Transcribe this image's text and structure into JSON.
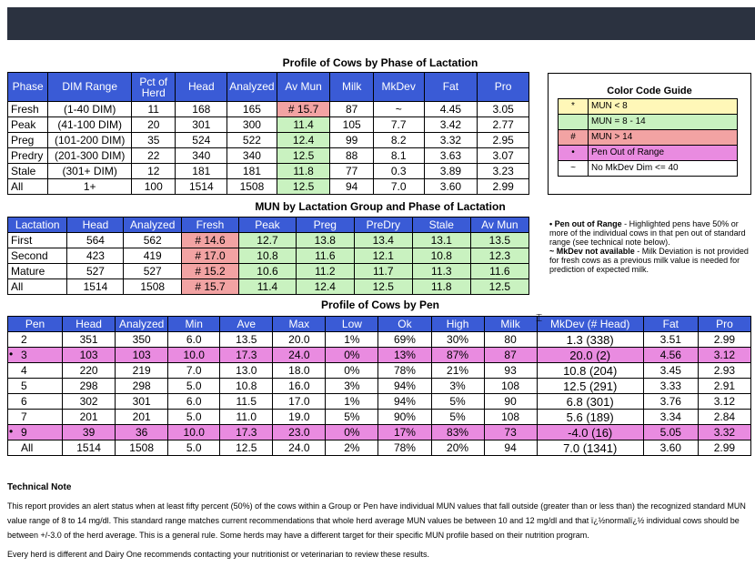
{
  "colors": {
    "header": "#3a5bd6",
    "green": "#c9f2c0",
    "red": "#f2a3a3",
    "pink": "#e98be0",
    "topbar": "#2b3240"
  },
  "phase": {
    "title": "Profile of Cows by Phase of Lactation",
    "headers": [
      "Phase",
      "DIM Range",
      "Pct of Herd",
      "Head",
      "Analyzed",
      "Av Mun",
      "Milk",
      "MkDev",
      "Fat",
      "Pro"
    ],
    "rows": [
      {
        "phase": "Fresh",
        "range": "(1-40 DIM)",
        "pct": "11",
        "head": "168",
        "analyzed": "165",
        "mun": "# 15.7",
        "milk": "87",
        "mkdev": "~",
        "fat": "4.45",
        "pro": "3.05",
        "munColor": "red"
      },
      {
        "phase": "Peak",
        "range": "(41-100 DIM)",
        "pct": "20",
        "head": "301",
        "analyzed": "300",
        "mun": "11.4",
        "milk": "105",
        "mkdev": "7.7",
        "fat": "3.42",
        "pro": "2.77",
        "munColor": "green"
      },
      {
        "phase": "Preg",
        "range": "(101-200 DIM)",
        "pct": "35",
        "head": "524",
        "analyzed": "522",
        "mun": "12.4",
        "milk": "99",
        "mkdev": "8.2",
        "fat": "3.32",
        "pro": "2.95",
        "munColor": "green"
      },
      {
        "phase": "Predry",
        "range": "(201-300 DIM)",
        "pct": "22",
        "head": "340",
        "analyzed": "340",
        "mun": "12.5",
        "milk": "88",
        "mkdev": "8.1",
        "fat": "3.63",
        "pro": "3.07",
        "munColor": "green"
      },
      {
        "phase": "Stale",
        "range": "(301+ DIM)",
        "pct": "12",
        "head": "181",
        "analyzed": "181",
        "mun": "11.8",
        "milk": "77",
        "mkdev": "0.3",
        "fat": "3.89",
        "pro": "3.23",
        "munColor": "green"
      },
      {
        "phase": "All",
        "range": "1+",
        "pct": "100",
        "head": "1514",
        "analyzed": "1508",
        "mun": "12.5",
        "milk": "94",
        "mkdev": "7.0",
        "fat": "3.60",
        "pro": "2.99",
        "munColor": "green"
      }
    ]
  },
  "group": {
    "title": "MUN by Lactation Group and Phase of Lactation",
    "headers": [
      "Lactation",
      "Head",
      "Analyzed",
      "Fresh",
      "Peak",
      "Preg",
      "PreDry",
      "Stale",
      "Av Mun"
    ],
    "rows": [
      {
        "lact": "First",
        "head": "564",
        "analyzed": "562",
        "fresh": "# 14.6",
        "peak": "12.7",
        "preg": "13.8",
        "predry": "13.4",
        "stale": "13.1",
        "avmun": "13.5"
      },
      {
        "lact": "Second",
        "head": "423",
        "analyzed": "419",
        "fresh": "# 17.0",
        "peak": "10.8",
        "preg": "11.6",
        "predry": "12.1",
        "stale": "10.8",
        "avmun": "12.3"
      },
      {
        "lact": "Mature",
        "head": "527",
        "analyzed": "527",
        "fresh": "# 15.2",
        "peak": "10.6",
        "preg": "11.2",
        "predry": "11.7",
        "stale": "11.3",
        "avmun": "11.6"
      },
      {
        "lact": "All",
        "head": "1514",
        "analyzed": "1508",
        "fresh": "# 15.7",
        "peak": "11.4",
        "preg": "12.4",
        "predry": "12.5",
        "stale": "11.8",
        "avmun": "12.5"
      }
    ]
  },
  "pen": {
    "title": "Profile of Cows by Pen",
    "headers": [
      "Pen",
      "Head",
      "Analyzed",
      "Min",
      "Ave",
      "Max",
      "Low",
      "Ok",
      "High",
      "Milk",
      "MkDev (# Head)",
      "Fat",
      "Pro"
    ],
    "rows": [
      {
        "pen": "2",
        "head": "351",
        "analyzed": "350",
        "min": "6.0",
        "ave": "13.5",
        "max": "20.0",
        "low": "1%",
        "ok": "69%",
        "high": "30%",
        "milk": "80",
        "mkdev": "1.3 (338)",
        "fat": "3.51",
        "pro": "2.99",
        "flag": false
      },
      {
        "pen": "3",
        "head": "103",
        "analyzed": "103",
        "min": "10.0",
        "ave": "17.3",
        "max": "24.0",
        "low": "0%",
        "ok": "13%",
        "high": "87%",
        "milk": "87",
        "mkdev": "20.0 (2)",
        "fat": "4.56",
        "pro": "3.12",
        "flag": true
      },
      {
        "pen": "4",
        "head": "220",
        "analyzed": "219",
        "min": "7.0",
        "ave": "13.0",
        "max": "18.0",
        "low": "0%",
        "ok": "78%",
        "high": "21%",
        "milk": "93",
        "mkdev": "10.8 (204)",
        "fat": "3.45",
        "pro": "2.93",
        "flag": false
      },
      {
        "pen": "5",
        "head": "298",
        "analyzed": "298",
        "min": "5.0",
        "ave": "10.8",
        "max": "16.0",
        "low": "3%",
        "ok": "94%",
        "high": "3%",
        "milk": "108",
        "mkdev": "12.5 (291)",
        "fat": "3.33",
        "pro": "2.91",
        "flag": false
      },
      {
        "pen": "6",
        "head": "302",
        "analyzed": "301",
        "min": "6.0",
        "ave": "11.5",
        "max": "17.0",
        "low": "1%",
        "ok": "94%",
        "high": "5%",
        "milk": "90",
        "mkdev": "6.8 (301)",
        "fat": "3.76",
        "pro": "3.12",
        "flag": false
      },
      {
        "pen": "7",
        "head": "201",
        "analyzed": "201",
        "min": "5.0",
        "ave": "11.0",
        "max": "19.0",
        "low": "5%",
        "ok": "90%",
        "high": "5%",
        "milk": "108",
        "mkdev": "5.6 (189)",
        "fat": "3.34",
        "pro": "2.84",
        "flag": false
      },
      {
        "pen": "9",
        "head": "39",
        "analyzed": "36",
        "min": "10.0",
        "ave": "17.3",
        "max": "23.0",
        "low": "0%",
        "ok": "17%",
        "high": "83%",
        "milk": "73",
        "mkdev": "-4.0 (16)",
        "fat": "5.05",
        "pro": "3.32",
        "flag": true
      },
      {
        "pen": "All",
        "head": "1514",
        "analyzed": "1508",
        "min": "5.0",
        "ave": "12.5",
        "max": "24.0",
        "low": "2%",
        "ok": "78%",
        "high": "20%",
        "milk": "94",
        "mkdev": "7.0 (1341)",
        "fat": "3.60",
        "pro": "2.99",
        "flag": false
      }
    ]
  },
  "legend": {
    "title": "Color Code Guide",
    "items": [
      {
        "symbol": "*",
        "label": "MUN < 8",
        "color": "yellow"
      },
      {
        "symbol": "",
        "label": "MUN = 8 - 14",
        "color": "green"
      },
      {
        "symbol": "#",
        "label": "MUN > 14",
        "color": "red"
      },
      {
        "symbol": "•",
        "label": "Pen Out of Range",
        "color": "pink"
      },
      {
        "symbol": "~",
        "label": "No MkDev Dim <= 40",
        "color": "white"
      }
    ]
  },
  "notes": {
    "pen_title": "• Pen out of Range",
    "pen_text": " - Highlighted pens have 50% or more of the individual cows in that pen out of standard range (see technical note below).",
    "mkdev_title": "~ MkDev not available",
    "mkdev_text": " - Milk Deviation is not provided for fresh cows as a previous milk value is needed for prediction of expected milk."
  },
  "tech": {
    "title": "Technical Note",
    "para1": "This report provides an alert status when at least fifty percent (50%) of the cows within a Group or Pen have individual MUN values that fall outside (greater than or less than) the recognized standard MUN value range of 8 to 14 mg/dl. This standard range matches current recommendations that whole herd average MUN values be between 10 and 12 mg/dl and that ï¿½normalï¿½ individual cows should be between +/-3.0 of the herd average. This is a general rule. Some herds may have a different target for their specific MUN profile based on their nutrition program.",
    "para2": "Every herd is different and Dairy One recommends contacting your nutritionist or veterinarian to review these results."
  }
}
